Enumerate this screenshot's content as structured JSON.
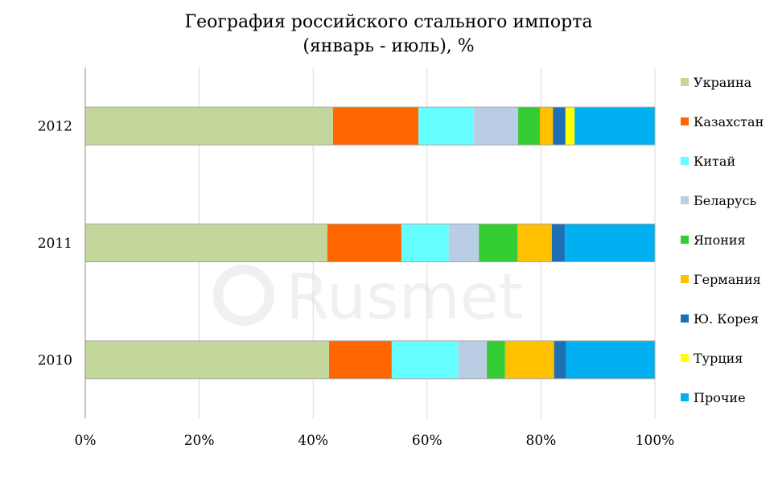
{
  "chart_data": {
    "type": "bar",
    "orientation": "horizontal",
    "stacked": "percent",
    "title": "География российского стального импорта",
    "subtitle": "(январь - июль), %",
    "categories": [
      "2012",
      "2011",
      "2010"
    ],
    "series": [
      {
        "name": "Украина",
        "color": "#c3d69b",
        "values": [
          43.5,
          42.5,
          42.8
        ]
      },
      {
        "name": "Казахстан",
        "color": "#ff6600",
        "values": [
          15.0,
          13.0,
          11.0
        ]
      },
      {
        "name": "Китай",
        "color": "#66ffff",
        "values": [
          9.7,
          8.3,
          11.7
        ]
      },
      {
        "name": "Беларусь",
        "color": "#b9cde5",
        "values": [
          7.8,
          5.3,
          5.0
        ]
      },
      {
        "name": "Япония",
        "color": "#33cc33",
        "values": [
          3.8,
          6.8,
          3.2
        ]
      },
      {
        "name": "Германия",
        "color": "#ffc000",
        "values": [
          2.3,
          6.0,
          8.6
        ]
      },
      {
        "name": "Ю. Корея",
        "color": "#1f6fb5",
        "values": [
          2.2,
          2.3,
          2.1
        ]
      },
      {
        "name": "Турция",
        "color": "#ffff00",
        "values": [
          1.6,
          0.0,
          0.0
        ]
      },
      {
        "name": "Прочие",
        "color": "#00b0f0",
        "values": [
          14.1,
          15.8,
          15.6
        ]
      }
    ],
    "x_ticks": [
      "0%",
      "20%",
      "40%",
      "60%",
      "80%",
      "100%"
    ],
    "xlim": [
      0,
      100
    ],
    "grid": "vertical",
    "legend_position": "right"
  },
  "watermark": "Rusmet"
}
